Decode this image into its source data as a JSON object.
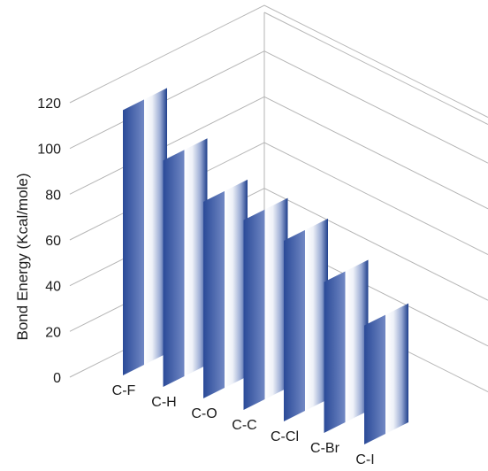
{
  "chart_data": {
    "type": "bar",
    "categories": [
      "C-F",
      "C-H",
      "C-O",
      "C-C",
      "C-Cl",
      "C-Br",
      "C-I"
    ],
    "values": [
      116,
      99,
      86,
      83,
      79,
      66,
      52
    ],
    "title": "",
    "xlabel": "",
    "ylabel": "Bond Energy (Kcal/mole)",
    "ylim": [
      0,
      120
    ],
    "yticks": [
      "0",
      "20",
      "40",
      "60",
      "80",
      "100",
      "120"
    ],
    "grid": true,
    "style": "3d",
    "colors": {
      "bar_dark": "#1f3f8c",
      "bar_mid": "#5d79bc",
      "bar_light": "#ffffff",
      "grid": "#b5b5b5"
    }
  }
}
